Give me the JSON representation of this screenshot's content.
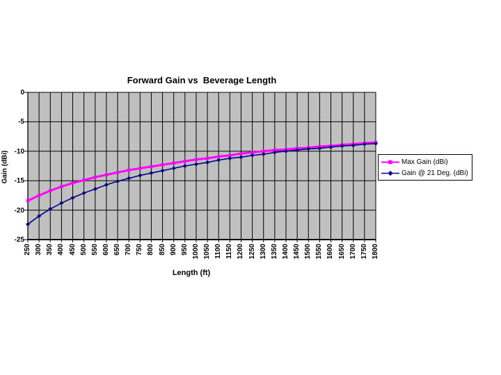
{
  "chart_data": {
    "type": "line",
    "title": "Forward Gain vs  Beverage Length",
    "xlabel": "Length (ft)",
    "ylabel": "Gain (dBi)",
    "categories": [
      250,
      300,
      350,
      400,
      450,
      500,
      550,
      600,
      650,
      700,
      750,
      800,
      850,
      900,
      950,
      1000,
      1050,
      1100,
      1150,
      1200,
      1250,
      1300,
      1350,
      1400,
      1450,
      1500,
      1550,
      1600,
      1650,
      1700,
      1750,
      1800
    ],
    "series": [
      {
        "name": "Max Gain (dBi)",
        "color": "#FF00FF",
        "marker": "square",
        "line_width": 3,
        "values": [
          -18.4,
          -17.5,
          -16.7,
          -16.0,
          -15.4,
          -14.9,
          -14.4,
          -14.0,
          -13.6,
          -13.2,
          -12.9,
          -12.6,
          -12.3,
          -12.0,
          -11.7,
          -11.4,
          -11.2,
          -10.9,
          -10.7,
          -10.4,
          -10.2,
          -10.0,
          -9.8,
          -9.7,
          -9.5,
          -9.4,
          -9.2,
          -9.1,
          -8.9,
          -8.8,
          -8.6,
          -8.5
        ]
      },
      {
        "name": "Gain @ 21 Deg. (dBi)",
        "color": "#000080",
        "marker": "diamond",
        "line_width": 1.6,
        "values": [
          -22.4,
          -21.0,
          -19.8,
          -18.8,
          -17.9,
          -17.1,
          -16.4,
          -15.7,
          -15.1,
          -14.6,
          -14.1,
          -13.7,
          -13.3,
          -12.9,
          -12.5,
          -12.2,
          -11.9,
          -11.5,
          -11.2,
          -11.0,
          -10.7,
          -10.5,
          -10.2,
          -10.0,
          -9.8,
          -9.6,
          -9.5,
          -9.3,
          -9.1,
          -9.0,
          -8.8,
          -8.7
        ]
      }
    ],
    "ylim": [
      -25,
      0
    ],
    "yticks": [
      0,
      -5,
      -10,
      -15,
      -20,
      -25
    ],
    "grid": true,
    "legend_position": "right",
    "plot_bg_color": "#C0C0C0",
    "gridline_color": "#000000",
    "axis_color": "#000000",
    "background_color": "#FFFFFF"
  }
}
